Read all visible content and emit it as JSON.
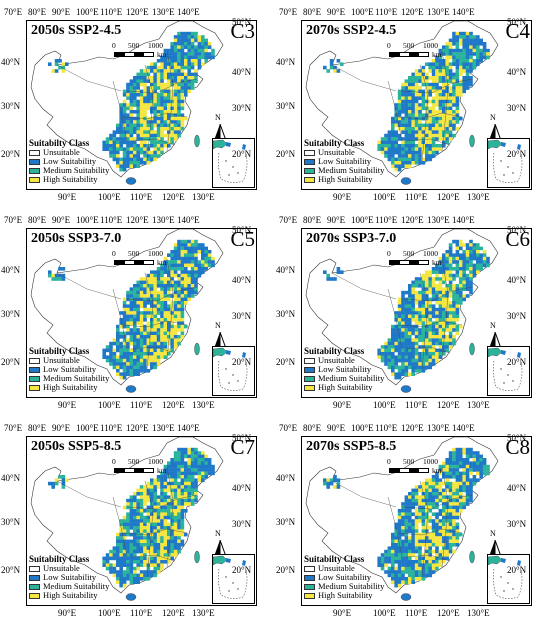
{
  "panels": [
    {
      "title": "2050s SSP2-4.5",
      "code": "C3",
      "seed": 1
    },
    {
      "title": "2070s SSP2-4.5",
      "code": "C4",
      "seed": 2
    },
    {
      "title": "2050s SSP3-7.0",
      "code": "C5",
      "seed": 3
    },
    {
      "title": "2070s SSP3-7.0",
      "code": "C6",
      "seed": 4
    },
    {
      "title": "2050s SSP5-8.5",
      "code": "C7",
      "seed": 5
    },
    {
      "title": "2070s SSP5-8.5",
      "code": "C8",
      "seed": 6
    }
  ],
  "axes": {
    "top_ticks": [
      "70°E",
      "80°E",
      "90°E",
      "100°E",
      "110°E",
      "120°E",
      "130°E",
      "140°E"
    ],
    "bottom_ticks": [
      "90°E",
      "100°E",
      "110°E",
      "120°E",
      "130°E"
    ],
    "left_ticks": [
      "40°N",
      "30°N",
      "20°N"
    ],
    "right_ticks": [
      "50°N",
      "40°N",
      "30°N",
      "20°N"
    ]
  },
  "scale": {
    "labels": [
      "0",
      "500",
      "1000"
    ],
    "unit": "km"
  },
  "north_label": "N",
  "legend": {
    "title": "Suitabilty Class",
    "items": [
      {
        "label": "Unsuitable",
        "color": "#ffffff"
      },
      {
        "label": "Low Suitability",
        "color": "#1f78c8"
      },
      {
        "label": "Medium Suitability",
        "color": "#2bb39b"
      },
      {
        "label": "High Suitability",
        "color": "#f5e642"
      }
    ]
  }
}
